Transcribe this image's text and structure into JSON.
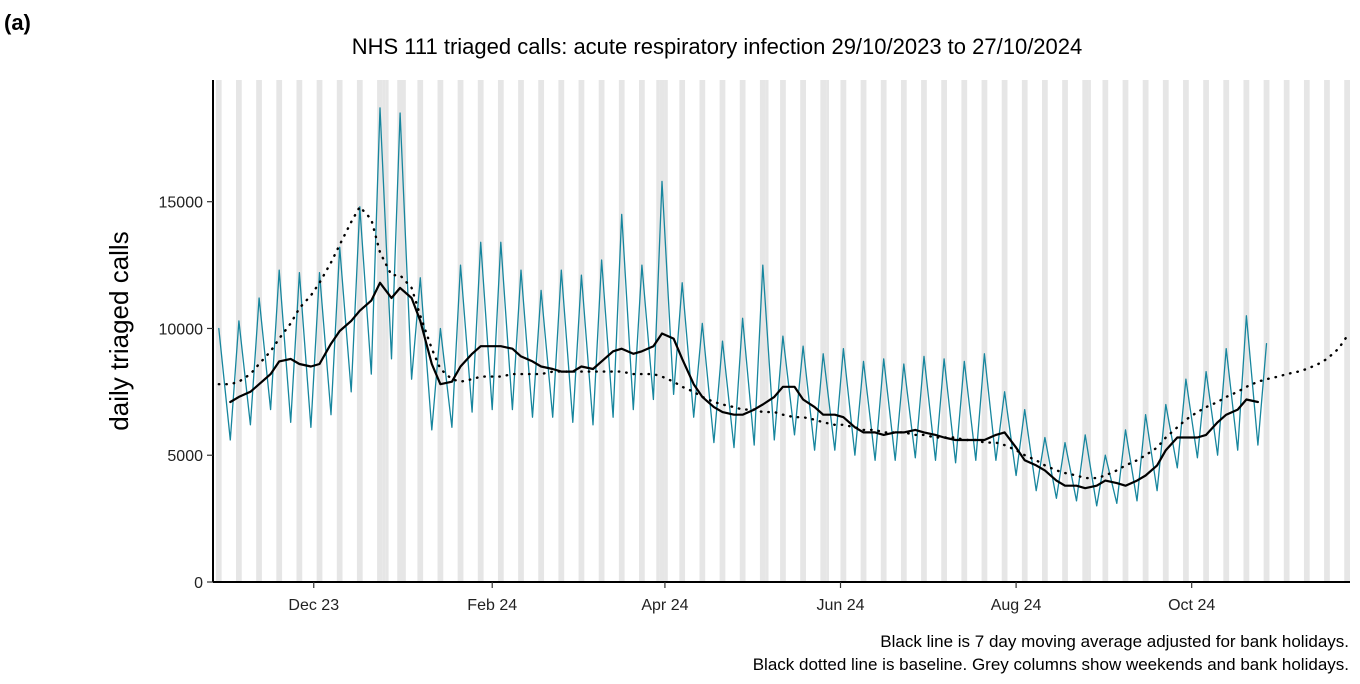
{
  "chart_data": {
    "type": "line",
    "panel": "(a)",
    "title": "NHS 111 triaged calls: acute respiratory infection 29/10/2023 to 27/10/2024",
    "ylabel": "daily triaged calls",
    "notes": [
      "Black line is 7 day moving average adjusted for bank holidays.",
      "Black dotted line is baseline. Grey columns show weekends and bank holidays."
    ],
    "xlim": [
      "2023-10-27",
      "2024-11-25"
    ],
    "xticks": [
      {
        "value": "2023-12-01",
        "label": "Dec 23"
      },
      {
        "value": "2024-02-01",
        "label": "Feb 24"
      },
      {
        "value": "2024-04-01",
        "label": "Apr 24"
      },
      {
        "value": "2024-06-01",
        "label": "Jun 24"
      },
      {
        "value": "2024-08-01",
        "label": "Aug 24"
      },
      {
        "value": "2024-10-01",
        "label": "Oct 24"
      }
    ],
    "ylim": [
      0,
      19800
    ],
    "yticks": [
      0,
      5000,
      10000,
      15000
    ],
    "weekends": [
      "2023-10-28",
      "2023-11-04",
      "2023-11-11",
      "2023-11-18",
      "2023-11-25",
      "2023-12-02",
      "2023-12-09",
      "2023-12-16",
      "2023-12-23",
      "2023-12-30",
      "2024-01-06",
      "2024-01-13",
      "2024-01-20",
      "2024-01-27",
      "2024-02-03",
      "2024-02-10",
      "2024-02-17",
      "2024-02-24",
      "2024-03-02",
      "2024-03-09",
      "2024-03-16",
      "2024-03-23",
      "2024-03-30",
      "2024-04-06",
      "2024-04-13",
      "2024-04-20",
      "2024-04-27",
      "2024-05-04",
      "2024-05-11",
      "2024-05-18",
      "2024-05-25",
      "2024-06-01",
      "2024-06-08",
      "2024-06-15",
      "2024-06-22",
      "2024-06-29",
      "2024-07-06",
      "2024-07-13",
      "2024-07-20",
      "2024-07-27",
      "2024-08-03",
      "2024-08-10",
      "2024-08-17",
      "2024-08-24",
      "2024-08-31",
      "2024-09-07",
      "2024-09-14",
      "2024-09-21",
      "2024-09-28",
      "2024-10-05",
      "2024-10-12",
      "2024-10-19",
      "2024-10-26",
      "2024-11-02",
      "2024-11-09",
      "2024-11-16",
      "2024-11-23"
    ],
    "bank_holidays": [
      "2023-12-25",
      "2023-12-26",
      "2024-01-01",
      "2024-03-29",
      "2024-04-01",
      "2024-05-06",
      "2024-05-27",
      "2024-08-26"
    ],
    "x": [
      "2023-10-29",
      "2023-11-02",
      "2023-11-05",
      "2023-11-09",
      "2023-11-12",
      "2023-11-16",
      "2023-11-19",
      "2023-11-23",
      "2023-11-26",
      "2023-11-30",
      "2023-12-03",
      "2023-12-07",
      "2023-12-10",
      "2023-12-14",
      "2023-12-17",
      "2023-12-21",
      "2023-12-24",
      "2023-12-28",
      "2023-12-31",
      "2024-01-04",
      "2024-01-07",
      "2024-01-11",
      "2024-01-14",
      "2024-01-18",
      "2024-01-21",
      "2024-01-25",
      "2024-01-28",
      "2024-02-01",
      "2024-02-04",
      "2024-02-08",
      "2024-02-11",
      "2024-02-15",
      "2024-02-18",
      "2024-02-22",
      "2024-02-25",
      "2024-02-29",
      "2024-03-03",
      "2024-03-07",
      "2024-03-10",
      "2024-03-14",
      "2024-03-17",
      "2024-03-21",
      "2024-03-24",
      "2024-03-28",
      "2024-03-31",
      "2024-04-04",
      "2024-04-07",
      "2024-04-11",
      "2024-04-14",
      "2024-04-18",
      "2024-04-21",
      "2024-04-25",
      "2024-04-28",
      "2024-05-02",
      "2024-05-05",
      "2024-05-09",
      "2024-05-12",
      "2024-05-16",
      "2024-05-19",
      "2024-05-23",
      "2024-05-26",
      "2024-05-30",
      "2024-06-02",
      "2024-06-06",
      "2024-06-09",
      "2024-06-13",
      "2024-06-16",
      "2024-06-20",
      "2024-06-23",
      "2024-06-27",
      "2024-06-30",
      "2024-07-04",
      "2024-07-07",
      "2024-07-11",
      "2024-07-14",
      "2024-07-18",
      "2024-07-21",
      "2024-07-25",
      "2024-07-28",
      "2024-08-01",
      "2024-08-04",
      "2024-08-08",
      "2024-08-11",
      "2024-08-15",
      "2024-08-18",
      "2024-08-22",
      "2024-08-25",
      "2024-08-29",
      "2024-09-01",
      "2024-09-05",
      "2024-09-08",
      "2024-09-12",
      "2024-09-15",
      "2024-09-19",
      "2024-09-22",
      "2024-09-26",
      "2024-09-29",
      "2024-10-03",
      "2024-10-06",
      "2024-10-10",
      "2024-10-13",
      "2024-10-17",
      "2024-10-20",
      "2024-10-24",
      "2024-10-27",
      "2024-10-31",
      "2024-11-03",
      "2024-11-07",
      "2024-11-10",
      "2024-11-14",
      "2024-11-17",
      "2024-11-21",
      "2024-11-24"
    ],
    "series": [
      {
        "color": "#17869e",
        "style": "solid",
        "values": [
          10000,
          5600,
          10300,
          6200,
          11200,
          6800,
          12300,
          6300,
          12200,
          6100,
          12200,
          6600,
          13200,
          7500,
          14800,
          8200,
          18700,
          8800,
          18500,
          8000,
          12000,
          6000,
          10000,
          6100,
          12500,
          6700,
          13400,
          6800,
          13400,
          6800,
          12300,
          6500,
          11500,
          6500,
          12300,
          6300,
          12100,
          6200,
          12700,
          6500,
          14500,
          6800,
          12500,
          7200,
          15800,
          7400,
          11800,
          6500,
          10200,
          5500,
          9500,
          5300,
          10400,
          5400,
          12500,
          5600,
          9700,
          5800,
          9300,
          5200,
          9000,
          5200,
          9200,
          5000,
          8700,
          4800,
          8800,
          4800,
          8600,
          4900,
          8900,
          4800,
          8800,
          4700,
          8700,
          4800,
          9000,
          4800,
          7500,
          4200,
          6800,
          3600,
          5700,
          3300,
          5500,
          3200,
          5800,
          3000,
          5000,
          3100,
          6000,
          3200,
          6600,
          3600,
          7000,
          4500,
          8000,
          4900,
          8300,
          5000,
          9200,
          5200,
          10500,
          5400,
          9400,
          null,
          null,
          null,
          null,
          null,
          null,
          null,
          null
        ]
      },
      {
        "color": "#000000",
        "style": "solid",
        "values": [
          null,
          7100,
          7300,
          7500,
          7800,
          8200,
          8700,
          8800,
          8600,
          8500,
          8600,
          9400,
          9900,
          10300,
          10700,
          11100,
          11800,
          11200,
          11600,
          11200,
          10300,
          8600,
          7800,
          7900,
          8500,
          9000,
          9300,
          9300,
          9300,
          9200,
          8900,
          8700,
          8500,
          8400,
          8300,
          8300,
          8500,
          8400,
          8700,
          9100,
          9200,
          9000,
          9100,
          9300,
          9800,
          9600,
          8800,
          7800,
          7300,
          6900,
          6700,
          6600,
          6600,
          6800,
          7000,
          7300,
          7700,
          7700,
          7200,
          6900,
          6600,
          6600,
          6500,
          6100,
          5900,
          5900,
          5800,
          5900,
          5900,
          6000,
          5900,
          5800,
          5700,
          5600,
          5600,
          5600,
          5600,
          5800,
          5900,
          5300,
          4800,
          4600,
          4400,
          4000,
          3800,
          3800,
          3700,
          3800,
          4000,
          3900,
          3800,
          4000,
          4200,
          4600,
          5200,
          5700,
          5700,
          5700,
          5800,
          6300,
          6600,
          6800,
          7200,
          7100,
          null,
          null,
          null,
          null,
          null,
          null,
          null,
          null,
          null
        ]
      },
      {
        "color": "#000000",
        "style": "dotted",
        "values": [
          7800,
          7800,
          7900,
          8200,
          8600,
          9100,
          9600,
          10200,
          10800,
          11300,
          11800,
          12600,
          13300,
          14200,
          14800,
          14300,
          13000,
          12100,
          12100,
          11600,
          10500,
          9200,
          8400,
          8000,
          7900,
          8000,
          8100,
          8100,
          8100,
          8200,
          8200,
          8200,
          8200,
          8300,
          8300,
          8300,
          8300,
          8300,
          8300,
          8300,
          8300,
          8200,
          8200,
          8200,
          8100,
          7900,
          7700,
          7500,
          7300,
          7100,
          7000,
          6900,
          6800,
          6800,
          6700,
          6700,
          6600,
          6500,
          6500,
          6400,
          6300,
          6200,
          6200,
          6100,
          6000,
          6000,
          5900,
          5900,
          5900,
          5800,
          5800,
          5700,
          5700,
          5700,
          5600,
          5600,
          5500,
          5500,
          5400,
          5200,
          5000,
          4800,
          4600,
          4400,
          4300,
          4200,
          4100,
          4100,
          4200,
          4400,
          4600,
          4800,
          5000,
          5300,
          5700,
          6100,
          6400,
          6700,
          6900,
          7100,
          7300,
          7500,
          7700,
          7900,
          8000,
          8100,
          8200,
          8300,
          8400,
          8600,
          8800,
          9200,
          9700
        ]
      }
    ]
  }
}
